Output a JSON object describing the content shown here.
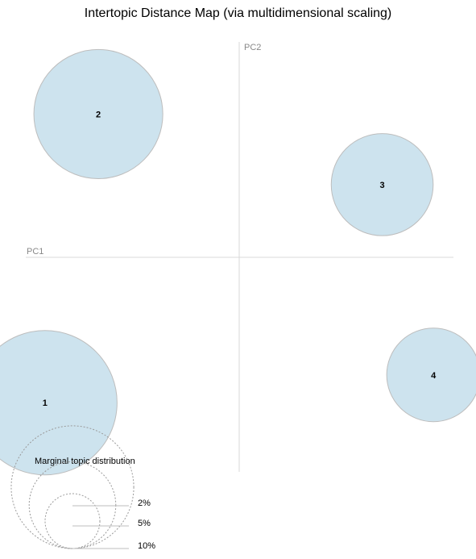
{
  "chart_data": {
    "type": "scatter",
    "title": "Intertopic Distance Map (via multidimensional scaling)",
    "xlabel": "PC1",
    "ylabel": "PC2",
    "grid": false,
    "xlim": [
      -1,
      1
    ],
    "ylim": [
      -1,
      1
    ],
    "points": [
      {
        "label": "1",
        "x": -0.91,
        "y": -0.68,
        "marginal_pct": 10.0
      },
      {
        "label": "2",
        "x": -0.66,
        "y": 0.67,
        "marginal_pct": 8.0
      },
      {
        "label": "3",
        "x": 0.67,
        "y": 0.34,
        "marginal_pct": 5.0
      },
      {
        "label": "4",
        "x": 0.91,
        "y": -0.55,
        "marginal_pct": 4.2
      }
    ],
    "size_legend": {
      "title": "Marginal topic distribution",
      "entries": [
        {
          "label": "2%",
          "pct": 2
        },
        {
          "label": "5%",
          "pct": 5
        },
        {
          "label": "10%",
          "pct": 10
        }
      ]
    },
    "colors": {
      "bubble_fill": "#cde3ee",
      "bubble_stroke": "#bdbdbd",
      "axis": "#d8d8d8",
      "axis_label": "#888888",
      "legend_circle": "#9a9a9a",
      "legend_line": "#bdbdbd"
    }
  }
}
